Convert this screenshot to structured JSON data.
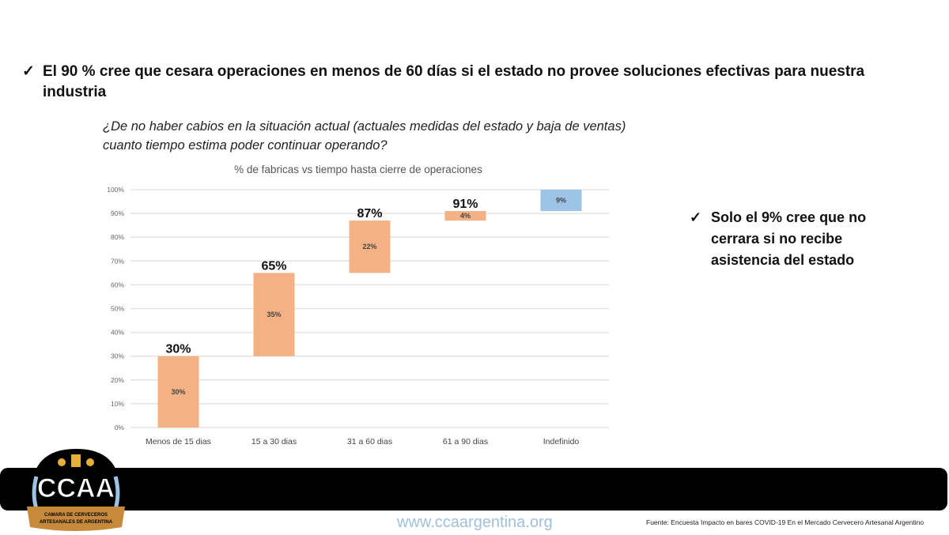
{
  "heading": {
    "check_icon": "✓",
    "text": "El 90 % cree que cesara operaciones en menos de 60 días si el estado no provee soluciones efectivas para nuestra industria"
  },
  "question": "¿De no haber cabios en la situación actual (actuales medidas del estado y baja de ventas) cuanto tiempo estima poder continuar operando?",
  "side_note": {
    "check_icon": "✓",
    "text": "Solo el 9% cree que no cerrara si no recibe asistencia del estado"
  },
  "chart_data": {
    "type": "bar",
    "subtype": "waterfall",
    "title": "% de fabricas vs tiempo hasta cierre de operaciones",
    "categories": [
      "Menos de 15 dias",
      "15 a 30 dias",
      "31 a 60 dias",
      "61 a 90 dias",
      "Indefinido"
    ],
    "values": [
      30,
      35,
      22,
      4,
      9
    ],
    "bases": [
      0,
      30,
      65,
      87,
      91
    ],
    "value_labels": [
      "30%",
      "35%",
      "22%",
      "4%",
      "9%"
    ],
    "cumulative_labels": [
      "30%",
      "65%",
      "87%",
      "91%",
      ""
    ],
    "ylim": [
      0,
      100
    ],
    "yticks": [
      "0%",
      "10%",
      "20%",
      "30%",
      "40%",
      "50%",
      "60%",
      "70%",
      "80%",
      "90%",
      "100%"
    ],
    "grid": true,
    "colors": [
      "#f4b183",
      "#f4b183",
      "#f4b183",
      "#f4b183",
      "#9dc3e6"
    ]
  },
  "footer": {
    "logo_text": "CCAA",
    "logo_subtext": "CAMARA DE CERVECEROS ARTESANALES DE ARGENTINA",
    "url": "www.ccaargentina.org",
    "source": "Fuente: Encuesta Impacto en bares COVID-19 En el Mercado Cervecero Artesanal Argentino"
  }
}
